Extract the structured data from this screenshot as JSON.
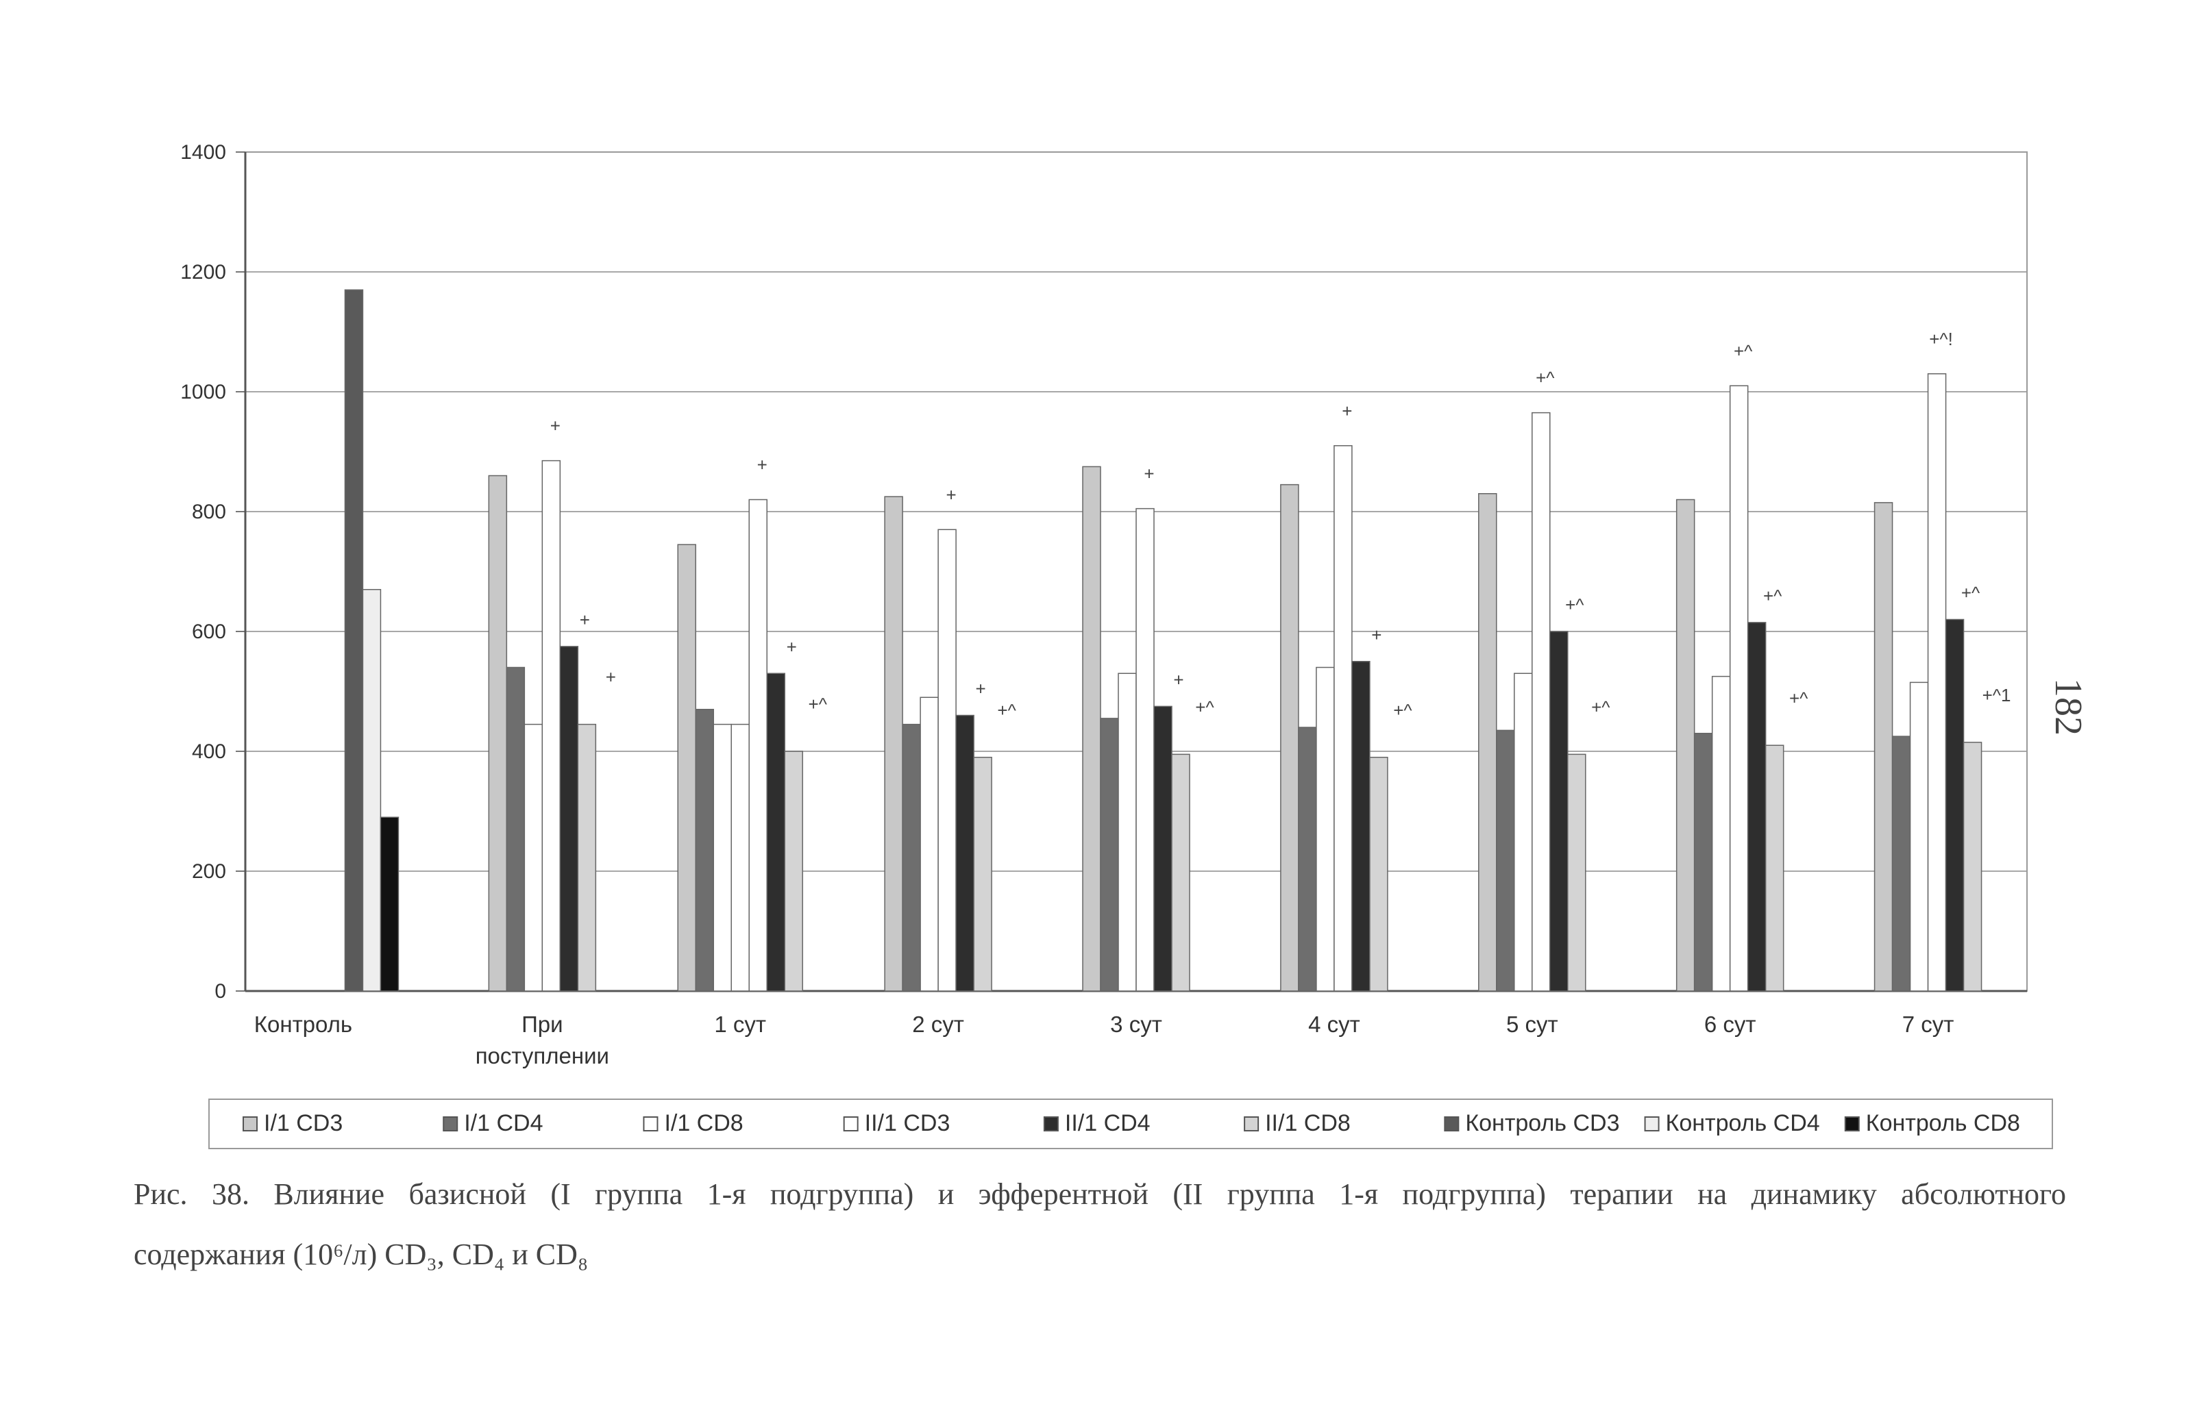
{
  "page_number": "182",
  "caption": {
    "line1": "Рис. 38. Влияние базисной (I группа 1-я подгруппа) и эфферентной (II группа 1-я подгруппа) терапии на динамику абсолютного",
    "line2": "содержания (10⁶/л) CD₃, CD₄ и CD₈"
  },
  "chart_data": {
    "type": "bar",
    "title": "",
    "xlabel": "",
    "ylabel": "",
    "ylim": [
      0,
      1400
    ],
    "yticks": [
      0,
      200,
      400,
      600,
      800,
      1000,
      1200,
      1400
    ],
    "grid": true,
    "legend_position": "bottom",
    "categories": [
      [
        "Контроль"
      ],
      [
        "При",
        "поступлении"
      ],
      [
        "1 сут"
      ],
      [
        "2 сут"
      ],
      [
        "3 сут"
      ],
      [
        "4 сут"
      ],
      [
        "5 сут"
      ],
      [
        "6 сут"
      ],
      [
        "7 сут"
      ]
    ],
    "series": [
      {
        "name": "I/1 CD3",
        "color": "#c8c8c8",
        "values": [
          null,
          860,
          745,
          825,
          875,
          845,
          830,
          820,
          815
        ]
      },
      {
        "name": "I/1 CD4",
        "color": "#6e6e6e",
        "values": [
          null,
          540,
          470,
          445,
          455,
          440,
          435,
          430,
          425
        ]
      },
      {
        "name": "I/1 CD8",
        "color": "#ffffff",
        "values": [
          null,
          445,
          445,
          null,
          null,
          null,
          null,
          null,
          null
        ]
      },
      {
        "name": "II/1 CD3",
        "color": "#ffffff",
        "values": [
          null,
          885,
          820,
          770,
          805,
          910,
          965,
          1010,
          1030
        ]
      },
      {
        "name": "II/1 CD4",
        "color": "#2e2e2e",
        "values": [
          null,
          575,
          530,
          460,
          475,
          550,
          600,
          615,
          620
        ]
      },
      {
        "name": "II/1 CD8",
        "color": "#d4d4d4",
        "values": [
          null,
          445,
          400,
          390,
          395,
          390,
          395,
          410,
          415
        ]
      },
      {
        "name": "Контроль CD3",
        "color": "#5a5a5a",
        "values": [
          1170,
          null,
          null,
          null,
          null,
          null,
          null,
          null,
          null
        ]
      },
      {
        "name": "Контроль CD4",
        "color": "#eeeeee",
        "values": [
          670,
          null,
          null,
          null,
          null,
          null,
          null,
          null,
          null
        ]
      },
      {
        "name": "Контроль CD8",
        "color": "#111111",
        "values": [
          290,
          null,
          null,
          null,
          null,
          null,
          null,
          null,
          null
        ]
      }
    ],
    "extra_bars": [
      {
        "category": 2,
        "value": 445,
        "after_series": "I/1 CD4"
      },
      {
        "category": 3,
        "value": 490,
        "after_series": "I/1 CD4"
      },
      {
        "category": 4,
        "value": 530,
        "after_series": "I/1 CD4"
      },
      {
        "category": 5,
        "value": 540,
        "after_series": "I/1 CD4"
      },
      {
        "category": 6,
        "value": 530,
        "after_series": "I/1 CD4"
      },
      {
        "category": 7,
        "value": 525,
        "after_series": "I/1 CD4"
      },
      {
        "category": 8,
        "value": 515,
        "after_series": "I/1 CD4"
      }
    ],
    "annotations": [
      {
        "category": 1,
        "series": "II/1 CD3",
        "text": "+"
      },
      {
        "category": 1,
        "series": "II/1 CD4",
        "text": "+"
      },
      {
        "category": 1,
        "series": "II/1 CD8",
        "text": "+"
      },
      {
        "category": 2,
        "series": "II/1 CD3",
        "text": "+"
      },
      {
        "category": 2,
        "series": "II/1 CD4",
        "text": "+"
      },
      {
        "category": 2,
        "series": "II/1 CD8",
        "text": "+^"
      },
      {
        "category": 3,
        "series": "II/1 CD3",
        "text": "+"
      },
      {
        "category": 3,
        "series": "II/1 CD4",
        "text": "+"
      },
      {
        "category": 3,
        "series": "II/1 CD8",
        "text": "+^"
      },
      {
        "category": 4,
        "series": "II/1 CD3",
        "text": "+"
      },
      {
        "category": 4,
        "series": "II/1 CD4",
        "text": "+"
      },
      {
        "category": 4,
        "series": "II/1 CD8",
        "text": "+^"
      },
      {
        "category": 5,
        "series": "II/1 CD3",
        "text": "+"
      },
      {
        "category": 5,
        "series": "II/1 CD4",
        "text": "+"
      },
      {
        "category": 5,
        "series": "II/1 CD8",
        "text": "+^"
      },
      {
        "category": 6,
        "series": "II/1 CD3",
        "text": "+^"
      },
      {
        "category": 6,
        "series": "II/1 CD4",
        "text": "+^"
      },
      {
        "category": 6,
        "series": "II/1 CD8",
        "text": "+^"
      },
      {
        "category": 7,
        "series": "II/1 CD3",
        "text": "+^"
      },
      {
        "category": 7,
        "series": "II/1 CD4",
        "text": "+^"
      },
      {
        "category": 7,
        "series": "II/1 CD8",
        "text": "+^"
      },
      {
        "category": 8,
        "series": "II/1 CD3",
        "text": "+^!"
      },
      {
        "category": 8,
        "series": "II/1 CD4",
        "text": "+^"
      },
      {
        "category": 8,
        "series": "II/1 CD8",
        "text": "+^1"
      }
    ]
  }
}
